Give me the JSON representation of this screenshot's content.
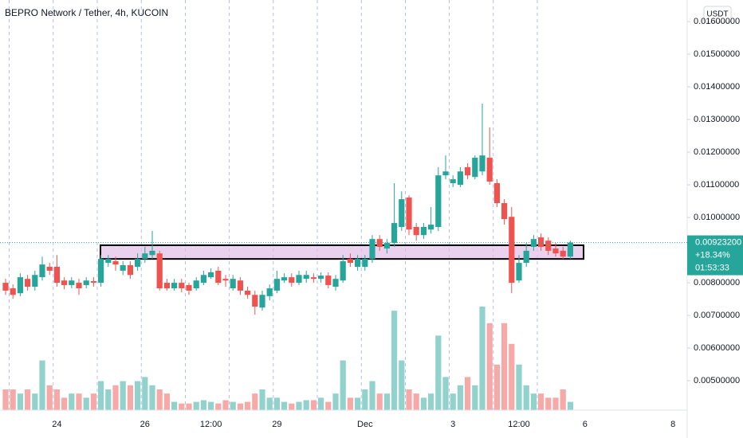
{
  "chart_data": {
    "type": "candlestick",
    "title": "BEPRO Network / Tether, 4h, KUCOIN",
    "currency": "USDT",
    "up_color": "#26a69a",
    "down_color": "#ef5350",
    "open": [
      0.008,
      0.00783,
      0.00768,
      0.00812,
      0.00788,
      0.00817,
      0.00849,
      0.00849,
      0.00807,
      0.00793,
      0.008,
      0.00793,
      0.00805,
      0.008,
      0.00861,
      0.00866,
      0.00837,
      0.00854,
      0.00849,
      0.00873,
      0.00885,
      0.0089,
      0.008,
      0.00783,
      0.008,
      0.00793,
      0.00783,
      0.008,
      0.00817,
      0.00837,
      0.00812,
      0.00783,
      0.00807,
      0.00776,
      0.00763,
      0.00724,
      0.00759,
      0.00776,
      0.00807,
      0.00817,
      0.008,
      0.00812,
      0.00817,
      0.00812,
      0.00822,
      0.00788,
      0.00807,
      0.00873,
      0.00849,
      0.00849,
      0.00873,
      0.00934,
      0.00905,
      0.00922,
      0.00971,
      0.01061,
      0.00971,
      0.00946,
      0.00963,
      0.00971,
      0.01129,
      0.01105,
      0.011,
      0.01154,
      0.01124,
      0.01141,
      0.01183,
      0.01105,
      0.01044,
      0.01002,
      0.00807,
      0.00861,
      0.0091,
      0.00939,
      0.00929,
      0.00905,
      0.00898,
      0.0088
    ],
    "high": [
      0.00812,
      0.00795,
      0.00829,
      0.00824,
      0.00837,
      0.0088,
      0.00861,
      0.00885,
      0.00817,
      0.00817,
      0.00812,
      0.00817,
      0.00817,
      0.00885,
      0.00885,
      0.0088,
      0.00866,
      0.00866,
      0.0089,
      0.0091,
      0.00959,
      0.00898,
      0.00812,
      0.00812,
      0.00812,
      0.008,
      0.00817,
      0.00837,
      0.00844,
      0.00849,
      0.00824,
      0.00824,
      0.00817,
      0.00788,
      0.00776,
      0.00776,
      0.00795,
      0.00837,
      0.00829,
      0.00829,
      0.00837,
      0.00837,
      0.00829,
      0.00832,
      0.00832,
      0.00824,
      0.00885,
      0.0089,
      0.00885,
      0.00885,
      0.00946,
      0.00946,
      0.00934,
      0.01105,
      0.0108,
      0.01068,
      0.00983,
      0.00983,
      0.01032,
      0.01154,
      0.0119,
      0.01129,
      0.01154,
      0.01166,
      0.0119,
      0.01349,
      0.01276,
      0.01117,
      0.01056,
      0.01032,
      0.00885,
      0.00922,
      0.00946,
      0.00951,
      0.00939,
      0.00922,
      0.0091,
      0.00929
    ],
    "low": [
      0.00763,
      0.00751,
      0.00759,
      0.00776,
      0.00776,
      0.00807,
      0.00824,
      0.00788,
      0.0078,
      0.00783,
      0.00763,
      0.00783,
      0.00788,
      0.00788,
      0.00849,
      0.00837,
      0.00824,
      0.00812,
      0.00837,
      0.00861,
      0.00873,
      0.00776,
      0.00776,
      0.00776,
      0.00771,
      0.00763,
      0.00776,
      0.00793,
      0.00812,
      0.00793,
      0.00788,
      0.00776,
      0.00763,
      0.00751,
      0.00702,
      0.00715,
      0.00746,
      0.00768,
      0.008,
      0.00788,
      0.00793,
      0.008,
      0.008,
      0.008,
      0.00783,
      0.00776,
      0.008,
      0.00849,
      0.00837,
      0.00837,
      0.00861,
      0.00898,
      0.0089,
      0.0091,
      0.00959,
      0.00946,
      0.00929,
      0.00934,
      0.00951,
      0.00959,
      0.01117,
      0.01093,
      0.01093,
      0.01117,
      0.01117,
      0.01129,
      0.011,
      0.01032,
      0.00978,
      0.00768,
      0.008,
      0.00849,
      0.00898,
      0.00898,
      0.00885,
      0.0088,
      0.00873,
      0.00873
    ],
    "close": [
      0.00776,
      0.00763,
      0.00817,
      0.00788,
      0.00824,
      0.00856,
      0.00837,
      0.008,
      0.00793,
      0.00807,
      0.00783,
      0.00807,
      0.008,
      0.00873,
      0.00873,
      0.00856,
      0.00854,
      0.00824,
      0.00873,
      0.0089,
      0.00898,
      0.00783,
      0.00783,
      0.008,
      0.00783,
      0.00776,
      0.00807,
      0.00824,
      0.00832,
      0.008,
      0.00807,
      0.00812,
      0.00776,
      0.00763,
      0.00727,
      0.00763,
      0.00783,
      0.00812,
      0.00817,
      0.008,
      0.00824,
      0.00824,
      0.00812,
      0.00822,
      0.00793,
      0.00812,
      0.00866,
      0.00861,
      0.00873,
      0.00873,
      0.00934,
      0.0091,
      0.00922,
      0.00983,
      0.01056,
      0.00963,
      0.00946,
      0.00971,
      0.00978,
      0.01129,
      0.01141,
      0.01117,
      0.01141,
      0.01129,
      0.01183,
      0.0119,
      0.0111,
      0.01044,
      0.00995,
      0.008,
      0.00861,
      0.00898,
      0.00934,
      0.0091,
      0.00898,
      0.0089,
      0.0088,
      0.009232
    ],
    "volume": [
      25,
      25,
      20,
      25,
      20,
      60,
      30,
      25,
      15,
      20,
      20,
      15,
      20,
      35,
      25,
      30,
      35,
      30,
      35,
      40,
      30,
      25,
      20,
      10,
      8,
      8,
      10,
      12,
      10,
      8,
      12,
      10,
      8,
      10,
      20,
      25,
      15,
      15,
      10,
      8,
      10,
      12,
      12,
      15,
      10,
      20,
      60,
      15,
      15,
      25,
      35,
      20,
      20,
      120,
      60,
      25,
      20,
      15,
      20,
      90,
      40,
      20,
      30,
      40,
      30,
      125,
      105,
      55,
      105,
      80,
      55,
      30,
      20,
      20,
      15,
      15,
      25,
      10
    ],
    "ylim": [
      0.0041,
      0.01666
    ],
    "yticks": [
      {
        "value": 0.005,
        "label": "0.00500000"
      },
      {
        "value": 0.006,
        "label": "0.00600000"
      },
      {
        "value": 0.007,
        "label": "0.00700000"
      },
      {
        "value": 0.008,
        "label": "0.00800000"
      },
      {
        "value": 0.01,
        "label": "0.01000000"
      },
      {
        "value": 0.011,
        "label": "0.01100000"
      },
      {
        "value": 0.012,
        "label": "0.01200000"
      },
      {
        "value": 0.013,
        "label": "0.01300000"
      },
      {
        "value": 0.014,
        "label": "0.01400000"
      },
      {
        "value": 0.015,
        "label": "0.01500000"
      },
      {
        "value": 0.016,
        "label": "0.01600000"
      }
    ],
    "x_labels": [
      {
        "label": "24",
        "index": 7
      },
      {
        "label": "26",
        "index": 19
      },
      {
        "label": "12:00",
        "index": 28
      },
      {
        "label": "29",
        "index": 37
      },
      {
        "label": "Dec",
        "index": 49
      },
      {
        "label": "3",
        "index": 61
      },
      {
        "label": "12:00",
        "index": 70
      },
      {
        "label": "6",
        "index": 79
      },
      {
        "label": "8",
        "index": 91
      }
    ],
    "zone": {
      "high": 0.00915,
      "low": 0.00873
    },
    "last_price_label": "0.00923200",
    "change_label": "+18.34%",
    "countdown": "01:53:33"
  }
}
